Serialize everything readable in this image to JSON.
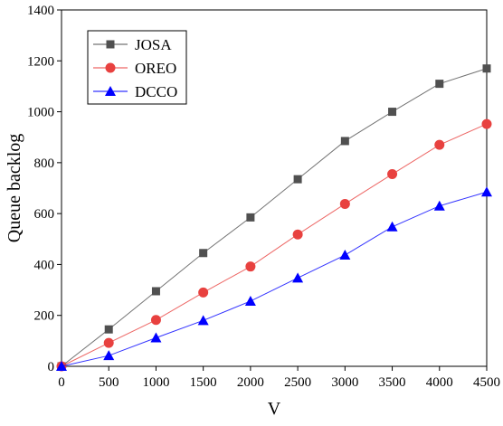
{
  "chart_data": {
    "type": "line",
    "x_label": "V",
    "y_label": "Queue backlog",
    "x": [
      0,
      500,
      1000,
      1500,
      2000,
      2500,
      3000,
      3500,
      4000,
      4500
    ],
    "series": [
      {
        "name": "JOSA",
        "color": "#505050",
        "marker": "square",
        "values": [
          0,
          145,
          295,
          445,
          585,
          735,
          885,
          1000,
          1110,
          1170
        ]
      },
      {
        "name": "OREO",
        "color": "#e8413f",
        "marker": "circle",
        "values": [
          0,
          92,
          182,
          290,
          392,
          518,
          638,
          755,
          870,
          952
        ]
      },
      {
        "name": "DCCO",
        "color": "#0000ff",
        "marker": "triangle",
        "values": [
          0,
          42,
          112,
          180,
          256,
          347,
          437,
          548,
          630,
          685
        ]
      }
    ],
    "xlim": [
      0,
      4500
    ],
    "xticks": [
      0,
      500,
      1000,
      1500,
      2000,
      2500,
      3000,
      3500,
      4000,
      4500
    ],
    "ylim": [
      0,
      1400
    ],
    "yticks": [
      0,
      200,
      400,
      600,
      800,
      1000,
      1200,
      1400
    ],
    "legend": "upper left"
  }
}
